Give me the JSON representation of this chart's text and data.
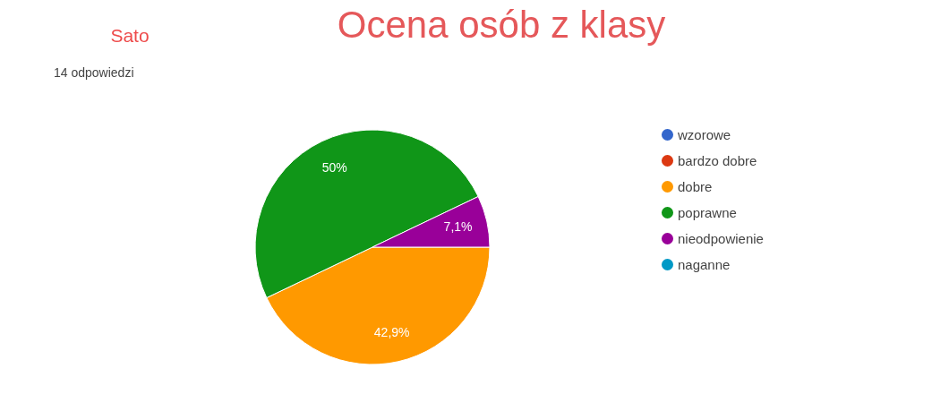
{
  "chart_data": {
    "type": "pie",
    "title": "Ocena osób z klasy",
    "subtitle": "14 odpowiedzi",
    "annotations": [
      "Sato"
    ],
    "categories": [
      "wzorowe",
      "bardzo dobre",
      "dobre",
      "poprawne",
      "nieodpowienie",
      "naganne"
    ],
    "values": [
      0,
      0,
      42.9,
      50,
      7.1,
      0
    ],
    "colors": [
      "#3366cc",
      "#dc3912",
      "#ff9900",
      "#109618",
      "#990099",
      "#0099c6"
    ],
    "value_labels": [
      null,
      null,
      "42,9%",
      "50%",
      "7,1%",
      null
    ],
    "legend": "right"
  }
}
